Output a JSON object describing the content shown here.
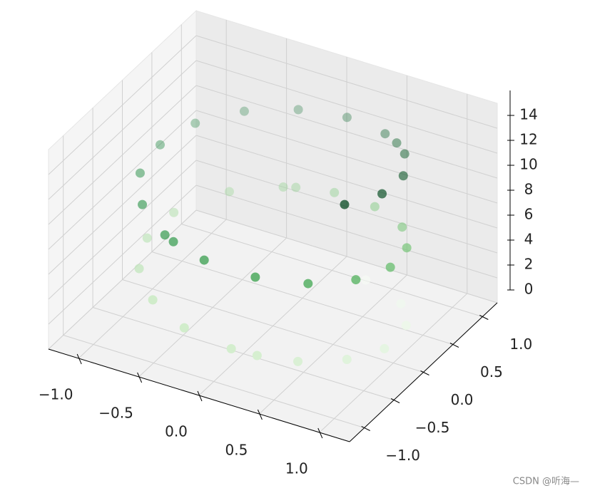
{
  "chart_data": {
    "type": "scatter3d",
    "cmap": "Greens",
    "grid": true,
    "x": [
      0.3,
      0.72,
      0.93,
      0.99,
      0.86,
      0.6,
      0.14,
      -0.26,
      -0.61,
      -0.87,
      -0.99,
      -0.96,
      -0.71,
      -0.37,
      0.02,
      0.4,
      0.74,
      0.94,
      1.0,
      0.9,
      0.66,
      0.32,
      -0.08,
      -0.46,
      -0.77,
      -0.96,
      -0.99,
      -0.88,
      -0.62,
      -0.26,
      0.13,
      0.51,
      0.8,
      0.97,
      0.99,
      0.86,
      0.33,
      -0.28,
      -0.37,
      0.66
    ],
    "y": [
      0.96,
      0.7,
      0.36,
      -0.13,
      -0.5,
      -0.8,
      -0.99,
      -0.97,
      -0.79,
      -0.49,
      -0.11,
      0.28,
      0.71,
      0.93,
      1.0,
      0.91,
      0.68,
      0.35,
      -0.05,
      -0.43,
      -0.75,
      -0.95,
      -1.0,
      -0.89,
      -0.64,
      -0.29,
      0.11,
      0.48,
      0.78,
      0.96,
      0.99,
      0.86,
      0.6,
      0.23,
      -0.17,
      -0.54,
      -0.94,
      0.96,
      -0.93,
      0.75
    ],
    "z": [
      0.3,
      0.8,
      1.2,
      1.7,
      2.1,
      2.5,
      3.0,
      3.4,
      3.8,
      4.2,
      4.6,
      5.0,
      5.5,
      5.9,
      6.3,
      6.7,
      7.1,
      7.5,
      7.9,
      8.3,
      8.7,
      9.1,
      9.5,
      9.9,
      10.3,
      10.7,
      11.1,
      11.5,
      11.9,
      12.3,
      12.7,
      13.1,
      13.5,
      13.9,
      14.3,
      14.7,
      2.8,
      6.0,
      9.8,
      13.3
    ],
    "xlim": [
      -1.25,
      1.25
    ],
    "ylim": [
      -1.25,
      1.25
    ],
    "zlim": [
      0,
      16
    ],
    "xticks": [
      {
        "value": -1,
        "label": "−1.0"
      },
      {
        "value": -0.5,
        "label": "−0.5"
      },
      {
        "value": 0,
        "label": "0.0"
      },
      {
        "value": 0.5,
        "label": "0.5"
      },
      {
        "value": 1,
        "label": "1.0"
      }
    ],
    "yticks": [
      {
        "value": -1,
        "label": "−1.0"
      },
      {
        "value": -0.5,
        "label": "−0.5"
      },
      {
        "value": 0,
        "label": "0.0"
      },
      {
        "value": 0.5,
        "label": "0.5"
      },
      {
        "value": 1,
        "label": "1.0"
      }
    ],
    "zticks": [
      0,
      2,
      4,
      6,
      8,
      10,
      12,
      14
    ]
  },
  "watermark": "CSDN @听海—"
}
